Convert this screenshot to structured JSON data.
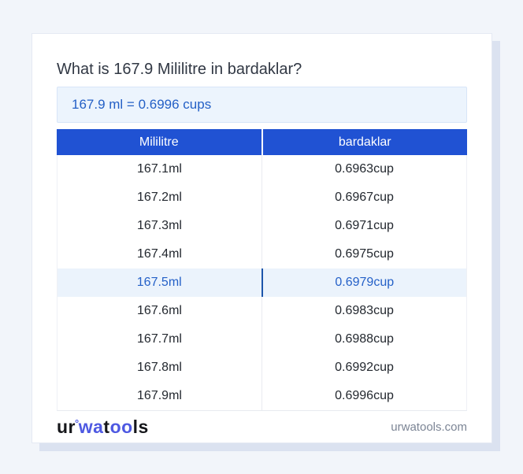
{
  "title": "What is 167.9 Mililitre in bardaklar?",
  "result_text": "167.9 ml = 0.6996 cups",
  "table": {
    "headers": [
      "Mililitre",
      "bardaklar"
    ],
    "rows": [
      {
        "ml": "167.1ml",
        "cup": "0.6963cup",
        "highlight": false
      },
      {
        "ml": "167.2ml",
        "cup": "0.6967cup",
        "highlight": false
      },
      {
        "ml": "167.3ml",
        "cup": "0.6971cup",
        "highlight": false
      },
      {
        "ml": "167.4ml",
        "cup": "0.6975cup",
        "highlight": false
      },
      {
        "ml": "167.5ml",
        "cup": "0.6979cup",
        "highlight": true
      },
      {
        "ml": "167.6ml",
        "cup": "0.6983cup",
        "highlight": false
      },
      {
        "ml": "167.7ml",
        "cup": "0.6988cup",
        "highlight": false
      },
      {
        "ml": "167.8ml",
        "cup": "0.6992cup",
        "highlight": false
      },
      {
        "ml": "167.9ml",
        "cup": "0.6996cup",
        "highlight": false
      }
    ]
  },
  "footer": {
    "logo": {
      "ur": "ur",
      "mark": "°",
      "wa": "wa",
      "t": "t",
      "oo": "oo",
      "ls": "ls"
    },
    "domain": "urwatools.com"
  },
  "colors": {
    "page_bg": "#f2f5fa",
    "header_blue": "#2052d3",
    "result_blue": "#2460c6",
    "result_bg": "#ecf4fd",
    "highlight_bg": "#ebf3fc",
    "highlight_text": "#2561c8",
    "logo_blue": "#4e59e2",
    "domain_gray": "#7c8595"
  }
}
